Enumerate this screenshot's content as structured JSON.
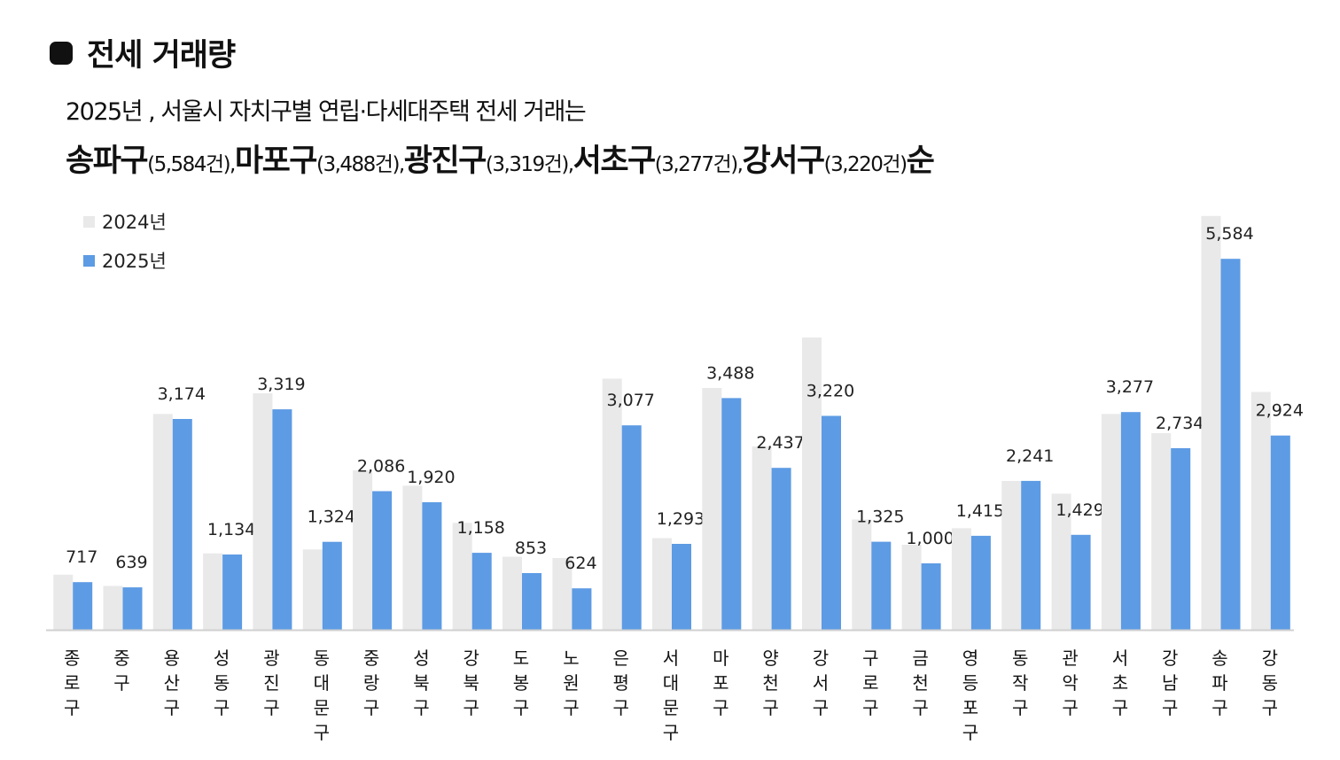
{
  "section_title": "전세 거래량",
  "headline": "2025년 , 서울시 자치구별 연립·다세대주택 전세 거래는",
  "summary": {
    "ranks": [
      {
        "name": "송파구",
        "count": "(5,584건),"
      },
      {
        "name": "마포구",
        "count": "(3,488건),"
      },
      {
        "name": "광진구",
        "count": "(3,319건),"
      },
      {
        "name": "서초구",
        "count": "(3,277건),"
      },
      {
        "name": "강서구",
        "count": "(3,220건)"
      }
    ],
    "suffix": "순"
  },
  "colors": {
    "series_2024": "#e9e9e9",
    "series_2025": "#5d9be4",
    "axis": "#d0d0d0"
  },
  "chart_data": {
    "type": "bar",
    "legend_position": "top-left",
    "grid": false,
    "ylim": [
      0,
      6000
    ],
    "categories": [
      "종로구",
      "중구",
      "용산구",
      "성동구",
      "광진구",
      "동대문구",
      "중랑구",
      "성북구",
      "강북구",
      "도봉구",
      "노원구",
      "은평구",
      "서대문구",
      "마포구",
      "양천구",
      "강서구",
      "구로구",
      "금천구",
      "영등포구",
      "동작구",
      "관악구",
      "서초구",
      "강남구",
      "송파구",
      "강동구"
    ],
    "series": [
      {
        "name": "2024년",
        "values": [
          830,
          660,
          3250,
          1150,
          3560,
          1210,
          2400,
          2170,
          1610,
          1100,
          1080,
          3780,
          1380,
          3640,
          2760,
          4400,
          1660,
          1280,
          1530,
          2240,
          2050,
          3250,
          2960,
          6230,
          3580
        ]
      },
      {
        "name": "2025년",
        "values": [
          717,
          639,
          3174,
          1134,
          3319,
          1324,
          2086,
          1920,
          1158,
          853,
          624,
          3077,
          1293,
          3488,
          2437,
          3220,
          1325,
          1000,
          1415,
          2241,
          1429,
          3277,
          2734,
          5584,
          2924
        ]
      }
    ],
    "data_labels": [
      "717",
      "639",
      "3,174",
      "1,134",
      "3,319",
      "1,324",
      "2,086",
      "1,920",
      "1,158",
      "853",
      "624",
      "3,077",
      "1,293",
      "3,488",
      "2,437",
      "3,220",
      "1,325",
      "1,000",
      "1,415",
      "2,241",
      "1,429",
      "3,277",
      "2,734",
      "5,584",
      "2,924"
    ]
  }
}
